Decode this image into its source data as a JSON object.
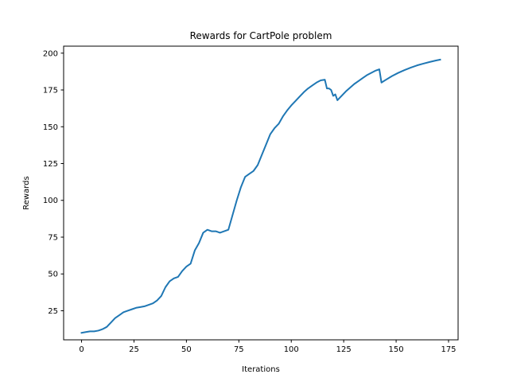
{
  "chart_data": {
    "type": "line",
    "title": "Rewards for CartPole problem",
    "xlabel": "Iterations",
    "ylabel": "Rewards",
    "xlim": [
      -8.55,
      179.55
    ],
    "ylim": [
      5.25,
      204.75
    ],
    "xticks": [
      0,
      25,
      50,
      75,
      100,
      125,
      150,
      175
    ],
    "yticks": [
      25,
      50,
      75,
      100,
      125,
      150,
      175,
      200
    ],
    "grid": false,
    "line_color": "#1f77b4",
    "series": [
      {
        "x": [
          0,
          2,
          4,
          6,
          8,
          10,
          12,
          14,
          16,
          18,
          20,
          22,
          24,
          26,
          28,
          30,
          32,
          34,
          36,
          38,
          40,
          42,
          44,
          46,
          48,
          50,
          52,
          54,
          56,
          58,
          60,
          62,
          64,
          66,
          68,
          70,
          72,
          74,
          76,
          78,
          80,
          82,
          84,
          86,
          88,
          90,
          92,
          94,
          96,
          98,
          100,
          102,
          104,
          106,
          108,
          110,
          112,
          114,
          116,
          117,
          118,
          119,
          120,
          121,
          122,
          124,
          126,
          128,
          130,
          132,
          134,
          136,
          138,
          140,
          142,
          143,
          145,
          148,
          151,
          154,
          157,
          160,
          163,
          166,
          169,
          171
        ],
        "y": [
          10,
          10.5,
          11,
          11,
          11.5,
          12.5,
          14,
          17,
          20,
          22,
          24,
          25,
          26,
          27,
          27.5,
          28,
          29,
          30,
          32,
          35,
          41,
          45,
          47,
          48,
          52,
          55,
          57,
          66,
          71,
          78,
          80,
          79,
          79,
          78,
          79,
          80,
          90,
          100,
          109,
          116,
          118,
          120,
          124,
          131,
          138,
          145,
          149,
          152,
          157,
          161,
          164.5,
          167.5,
          170.5,
          173.5,
          176,
          178,
          180,
          181.5,
          182,
          176,
          176,
          175,
          171,
          172,
          168,
          171,
          174,
          176.5,
          179,
          181,
          183,
          185,
          186.5,
          188,
          189,
          180,
          181.8,
          184.4,
          186.6,
          188.5,
          190.2,
          191.7,
          192.9,
          194,
          195,
          195.6
        ]
      }
    ]
  }
}
